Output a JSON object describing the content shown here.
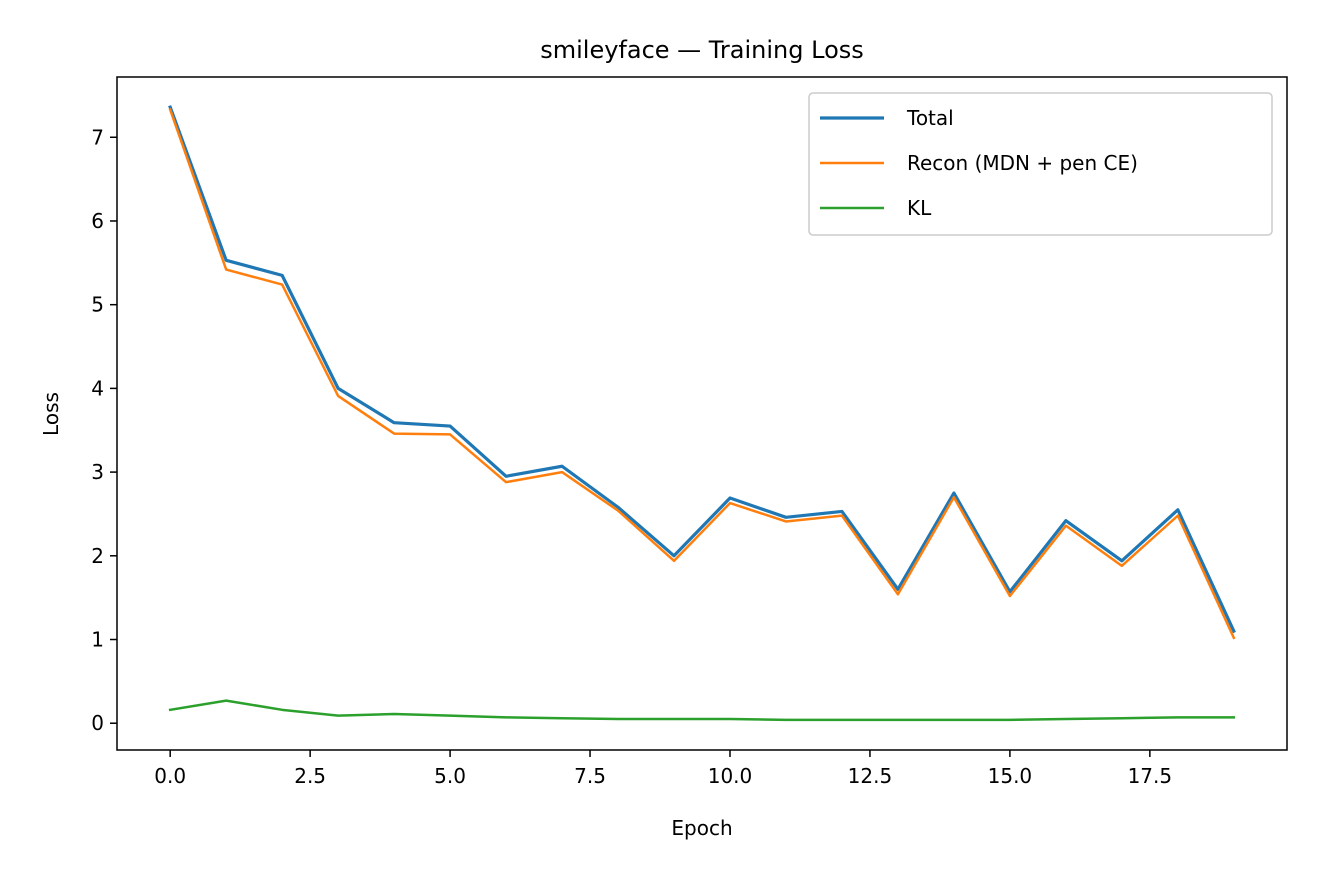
{
  "chart_data": {
    "type": "line",
    "title": "smileyface — Training Loss",
    "xlabel": "Epoch",
    "ylabel": "Loss",
    "xlim": [
      -0.95,
      19.95
    ],
    "ylim": [
      -0.32,
      7.72
    ],
    "xticks": [
      0.0,
      2.5,
      5.0,
      7.5,
      10.0,
      12.5,
      15.0,
      17.5
    ],
    "xtick_labels": [
      "0.0",
      "2.5",
      "5.0",
      "7.5",
      "10.0",
      "12.5",
      "15.0",
      "17.5"
    ],
    "yticks": [
      0,
      1,
      2,
      3,
      4,
      5,
      6,
      7
    ],
    "ytick_labels": [
      "0",
      "1",
      "2",
      "3",
      "4",
      "5",
      "6",
      "7"
    ],
    "grid": false,
    "legend_position": "top-right",
    "x": [
      0,
      1,
      2,
      3,
      4,
      5,
      6,
      7,
      8,
      9,
      10,
      11,
      12,
      13,
      14,
      15,
      16,
      17,
      18,
      19
    ],
    "series": [
      {
        "name": "Total",
        "color": "#1f77b4",
        "width": 3.2,
        "values": [
          7.36,
          5.53,
          5.35,
          4.0,
          3.59,
          3.55,
          2.95,
          3.07,
          2.58,
          2.0,
          2.69,
          2.46,
          2.53,
          1.6,
          2.75,
          1.57,
          2.42,
          1.94,
          2.55,
          1.1
        ]
      },
      {
        "name": "Recon (MDN + pen CE)",
        "color": "#ff7f0e",
        "width": 2.5,
        "values": [
          7.33,
          5.42,
          5.24,
          3.91,
          3.46,
          3.45,
          2.88,
          3.0,
          2.54,
          1.94,
          2.63,
          2.41,
          2.48,
          1.54,
          2.7,
          1.52,
          2.36,
          1.88,
          2.48,
          1.02
        ]
      },
      {
        "name": "KL",
        "color": "#2ca02c",
        "width": 2.5,
        "values": [
          0.16,
          0.27,
          0.16,
          0.09,
          0.11,
          0.09,
          0.07,
          0.06,
          0.05,
          0.05,
          0.05,
          0.04,
          0.04,
          0.04,
          0.04,
          0.04,
          0.05,
          0.06,
          0.07,
          0.07
        ]
      }
    ]
  }
}
